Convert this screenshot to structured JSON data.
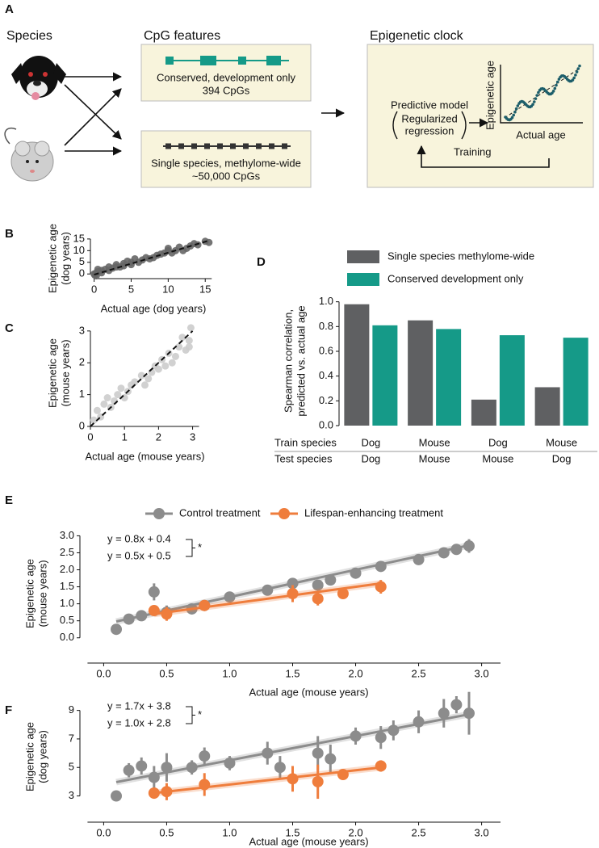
{
  "panel_a": {
    "label": "A",
    "species": "Species",
    "features_title": "CpG features",
    "conserved": [
      "Conserved, development only",
      "394 CpGs"
    ],
    "single": [
      "Single species, methylome-wide",
      "~50,000 CpGs"
    ],
    "clock_title": "Epigenetic clock",
    "model": "Predictive model",
    "model_paren": [
      "Regularized",
      "regression"
    ],
    "mini_y": "Epigenetic age",
    "mini_x": "Actual age",
    "training": "Training"
  },
  "chart_data": [
    {
      "panel": "B",
      "type": "scatter",
      "ylabel": [
        "Epigenetic age",
        "(dog years)"
      ],
      "xlabel": "Actual age (dog years)",
      "color": "#666666",
      "x": [
        0,
        0.1,
        0.2,
        0.3,
        0.5,
        0.5,
        1,
        1,
        1.5,
        2,
        2,
        2.5,
        3,
        3,
        3.5,
        4,
        4,
        4.5,
        5,
        5,
        5.5,
        6,
        6.5,
        7,
        7.5,
        8,
        8.5,
        9,
        9.5,
        10,
        10,
        10.5,
        11,
        11.5,
        12,
        12.5,
        13,
        13.5,
        14,
        15,
        15.5
      ],
      "values": [
        0,
        -0.5,
        0.3,
        -0.8,
        1,
        2,
        0.5,
        1.5,
        2,
        3,
        1.5,
        2.5,
        3,
        4,
        3,
        4.5,
        3.5,
        5.5,
        4,
        5,
        6.5,
        5,
        6,
        7,
        6.5,
        7,
        8,
        8.5,
        9,
        10,
        11,
        9,
        10,
        11.5,
        10,
        11,
        12,
        13,
        12.5,
        14,
        13.5
      ],
      "fit": {
        "x": [
          0,
          15.5
        ],
        "y": [
          -0.3,
          14.3
        ]
      },
      "xlim": [
        -0.5,
        16.5
      ],
      "ylim": [
        -2,
        16
      ],
      "xticks": [
        0,
        5,
        10,
        15
      ],
      "yticks": [
        0,
        5,
        10,
        15
      ]
    },
    {
      "panel": "C",
      "type": "scatter",
      "ylabel": [
        "Epigenetic age",
        "(mouse years)"
      ],
      "xlabel": "Actual age (mouse years)",
      "color": "#cccccc",
      "x": [
        0.1,
        0.2,
        0.3,
        0.4,
        0.5,
        0.6,
        0.7,
        0.8,
        0.9,
        1.0,
        1.1,
        1.2,
        1.3,
        1.5,
        1.6,
        1.7,
        1.8,
        1.9,
        2.0,
        2.1,
        2.2,
        2.3,
        2.4,
        2.5,
        2.6,
        2.7,
        2.8,
        2.9,
        2.95,
        2.9
      ],
      "values": [
        0.2,
        0.5,
        0.3,
        0.7,
        0.9,
        0.6,
        0.8,
        1.0,
        1.2,
        0.9,
        1.1,
        1.3,
        1.4,
        1.6,
        1.3,
        1.5,
        1.7,
        1.9,
        1.8,
        2.1,
        1.9,
        2.3,
        2.0,
        2.2,
        2.5,
        2.8,
        2.4,
        2.7,
        3.1,
        2.5
      ],
      "fit": {
        "x": [
          0,
          3
        ],
        "y": [
          0,
          3
        ]
      },
      "xlim": [
        0,
        3.2
      ],
      "ylim": [
        0,
        3.3
      ],
      "xticks": [
        0,
        1,
        2,
        3
      ],
      "yticks": [
        0,
        1,
        2,
        3
      ]
    },
    {
      "panel": "D",
      "type": "bar",
      "ylabel": [
        "Spearman correlation,",
        "predicted vs. actual age"
      ],
      "category_labels": [
        "Train species",
        "Test species"
      ],
      "categories": [
        "Dog",
        "Mouse",
        "Dog",
        "Mouse"
      ],
      "test_categories": [
        "Dog",
        "Mouse",
        "Mouse",
        "Dog"
      ],
      "series": [
        {
          "name": "Single species methylome-wide",
          "color": "#5f6062",
          "values": [
            0.98,
            0.85,
            0.21,
            0.31
          ]
        },
        {
          "name": "Conserved development only",
          "color": "#159a88",
          "values": [
            0.81,
            0.78,
            0.73,
            0.71
          ]
        }
      ],
      "ylim": [
        0,
        1.05
      ],
      "yticks": [
        {
          "value": 0,
          "label": "0.0"
        },
        0.2,
        0.4,
        0.6,
        0.8,
        {
          "value": 1,
          "label": "1.0"
        }
      ]
    },
    {
      "panel": "E",
      "type": "line",
      "legend": "top",
      "ylabel": [
        "Epigenetic age",
        "(mouse years)"
      ],
      "xlabel": "Actual age (mouse years)",
      "annotation": "*",
      "series": [
        {
          "name": "Control treatment",
          "color": "#8c8c8c",
          "x": [
            0.1,
            0.2,
            0.3,
            0.4,
            0.5,
            0.7,
            0.8,
            1.0,
            1.3,
            1.5,
            1.7,
            1.8,
            2.0,
            2.2,
            2.5,
            2.7,
            2.8,
            2.9
          ],
          "values": [
            0.25,
            0.55,
            0.65,
            1.35,
            0.75,
            0.85,
            0.95,
            1.2,
            1.4,
            1.6,
            1.55,
            1.7,
            1.9,
            2.1,
            2.3,
            2.5,
            2.6,
            2.7
          ],
          "errors": [
            0.15,
            0.08,
            0.1,
            0.25,
            0.2,
            0.1,
            0.12,
            0.1,
            0.1,
            0.12,
            0.15,
            0.1,
            0.1,
            0.12,
            0.12,
            0.1,
            0.1,
            0.2
          ],
          "fit": {
            "label": "y = 0.8x + 0.4",
            "slope": 0.8,
            "intercept": 0.4
          }
        },
        {
          "name": "Lifespan-enhancing treatment",
          "color": "#ef7d3c",
          "x": [
            0.4,
            0.5,
            0.8,
            1.5,
            1.7,
            1.9,
            2.2
          ],
          "values": [
            0.8,
            0.7,
            0.95,
            1.3,
            1.15,
            1.3,
            1.5
          ],
          "errors": [
            0.1,
            0.2,
            0.15,
            0.25,
            0.2,
            0.1,
            0.2
          ],
          "fit": {
            "label": "y = 0.5x + 0.5",
            "slope": 0.5,
            "intercept": 0.5
          }
        }
      ],
      "xlim": [
        -0.15,
        3.15
      ],
      "ylim": [
        -0.6,
        3.2
      ],
      "xticks": [
        {
          "value": 0,
          "label": "0.0"
        },
        0.5,
        {
          "value": 1,
          "label": "1.0"
        },
        1.5,
        {
          "value": 2,
          "label": "2.0"
        },
        2.5,
        {
          "value": 3,
          "label": "3.0"
        }
      ],
      "yticks": [
        {
          "value": 0,
          "label": "0.0"
        },
        0.5,
        {
          "value": 1,
          "label": "1.0"
        },
        1.5,
        {
          "value": 2,
          "label": "2.0"
        },
        2.5,
        {
          "value": 3,
          "label": "3.0"
        }
      ]
    },
    {
      "panel": "F",
      "type": "line",
      "ylabel": [
        "Epigenetic age",
        "(dog years)"
      ],
      "xlabel": "Actual age (mouse years)",
      "annotation": "*",
      "series": [
        {
          "color": "#8c8c8c",
          "x": [
            0.1,
            0.2,
            0.3,
            0.4,
            0.5,
            0.7,
            0.8,
            1.0,
            1.3,
            1.4,
            1.7,
            1.8,
            2.0,
            2.2,
            2.3,
            2.5,
            2.7,
            2.8,
            2.9
          ],
          "values": [
            3.0,
            4.8,
            5.1,
            4.3,
            5.0,
            5.0,
            5.8,
            5.3,
            6.0,
            5.0,
            6.0,
            5.6,
            7.2,
            7.1,
            7.6,
            8.2,
            8.8,
            9.4,
            8.8
          ],
          "errors": [
            0.3,
            0.5,
            0.6,
            0.8,
            1.0,
            0.5,
            0.6,
            0.5,
            0.8,
            0.8,
            1.2,
            1.0,
            0.6,
            0.8,
            0.7,
            0.8,
            1.0,
            0.6,
            1.5
          ],
          "fit": {
            "label": "y = 1.7x + 3.8",
            "slope": 1.7,
            "intercept": 3.8
          }
        },
        {
          "color": "#ef7d3c",
          "x": [
            0.4,
            0.5,
            0.8,
            1.5,
            1.7,
            1.9,
            2.2
          ],
          "values": [
            3.2,
            3.3,
            3.8,
            4.2,
            4.0,
            4.5,
            5.1
          ],
          "errors": [
            0.4,
            0.6,
            0.8,
            0.9,
            1.2,
            0.3,
            0.4
          ],
          "fit": {
            "label": "y = 1.0x + 2.8",
            "slope": 1.0,
            "intercept": 2.8
          }
        }
      ],
      "xlim": [
        -0.15,
        3.15
      ],
      "ylim": [
        1.5,
        10
      ],
      "xticks": [
        {
          "value": 0,
          "label": "0.0"
        },
        0.5,
        {
          "value": 1,
          "label": "1.0"
        },
        1.5,
        {
          "value": 2,
          "label": "2.0"
        },
        2.5,
        {
          "value": 3,
          "label": "3.0"
        }
      ],
      "yticks": [
        3,
        5,
        7,
        9
      ]
    }
  ]
}
